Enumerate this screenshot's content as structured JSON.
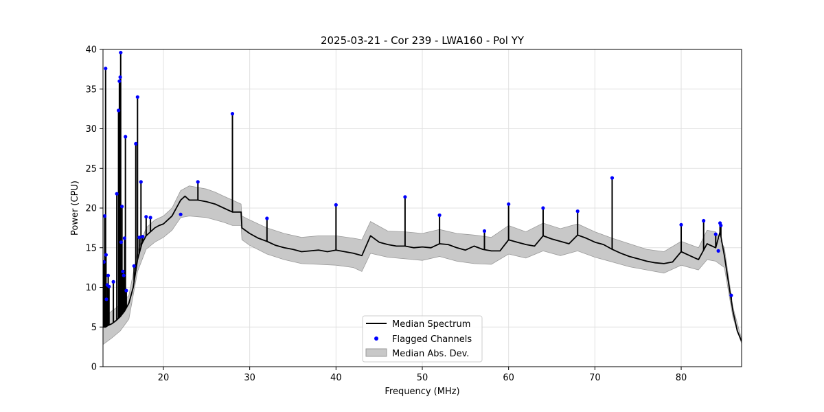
{
  "chart_data": {
    "type": "line",
    "title": "2025-03-21 - Cor 239 - LWA160 - Pol YY",
    "xlabel": "Frequency (MHz)",
    "ylabel": "Power (CPU)",
    "xlim": [
      13,
      87
    ],
    "ylim": [
      0,
      40
    ],
    "xticks": [
      20,
      30,
      40,
      50,
      60,
      70,
      80
    ],
    "xtick_labels": [
      "20",
      "30",
      "40",
      "50",
      "60",
      "70",
      "80"
    ],
    "yticks": [
      0,
      5,
      10,
      15,
      20,
      25,
      30,
      35,
      40
    ],
    "ytick_labels": [
      "0",
      "5",
      "10",
      "15",
      "20",
      "25",
      "30",
      "35",
      "40"
    ],
    "grid": true,
    "legend_position": "bottom-center",
    "colors": {
      "median": "#000000",
      "flagged": "#0000ff",
      "mad_fill": "#c8c8c8",
      "mad_edge": "#9a9a9a",
      "grid": "#e0e0e0"
    },
    "series": [
      {
        "name": "Median Spectrum",
        "kind": "line",
        "x": [
          13.0,
          13.3,
          13.6,
          14.0,
          14.5,
          15.0,
          15.5,
          16.0,
          16.5,
          17.0,
          17.5,
          18.0,
          18.5,
          19.0,
          19.5,
          20.0,
          20.5,
          21.0,
          21.5,
          22.0,
          22.5,
          23.0,
          24.0,
          25.0,
          26.0,
          27.0,
          28.0,
          29.0,
          29.1,
          30.0,
          31.0,
          32.0,
          33.0,
          34.0,
          35.0,
          36.0,
          37.0,
          38.0,
          39.0,
          40.0,
          41.0,
          42.0,
          43.0,
          44.0,
          45.0,
          46.0,
          47.0,
          48.0,
          49.0,
          50.0,
          51.0,
          52.0,
          53.0,
          54.0,
          55.0,
          56.0,
          57.0,
          58.0,
          59.0,
          60.0,
          61.0,
          62.0,
          63.0,
          64.0,
          65.0,
          66.0,
          67.0,
          68.0,
          69.0,
          70.0,
          71.0,
          72.0,
          73.0,
          74.0,
          75.0,
          76.0,
          77.0,
          78.0,
          79.0,
          80.0,
          81.0,
          82.0,
          83.0,
          84.0,
          84.5,
          85.0,
          85.5,
          86.0,
          86.5,
          87.0
        ],
        "values": [
          5.0,
          5.0,
          5.2,
          5.4,
          5.8,
          6.3,
          7.0,
          8.0,
          10.0,
          13.5,
          15.5,
          16.5,
          17.0,
          17.5,
          17.8,
          18.0,
          18.5,
          19.0,
          20.0,
          21.0,
          21.5,
          21.0,
          21.0,
          20.8,
          20.5,
          20.0,
          19.5,
          19.5,
          17.5,
          16.8,
          16.2,
          15.8,
          15.3,
          15.0,
          14.8,
          14.5,
          14.6,
          14.7,
          14.5,
          14.7,
          14.5,
          14.3,
          14.0,
          16.5,
          15.7,
          15.4,
          15.2,
          15.2,
          15.0,
          15.1,
          15.0,
          15.5,
          15.4,
          15.0,
          14.7,
          15.2,
          14.8,
          14.6,
          14.6,
          16.0,
          15.7,
          15.4,
          15.2,
          16.5,
          16.1,
          15.8,
          15.5,
          16.6,
          16.2,
          15.7,
          15.4,
          14.8,
          14.3,
          13.9,
          13.6,
          13.3,
          13.1,
          13.0,
          13.2,
          14.5,
          14.0,
          13.5,
          15.5,
          15.0,
          17.0,
          14.0,
          10.5,
          7.0,
          4.5,
          3.2
        ]
      },
      {
        "name": "Flagged Channels",
        "kind": "scatter",
        "x": [
          13.1,
          13.2,
          13.3,
          13.35,
          13.4,
          13.5,
          13.6,
          13.7,
          14.2,
          14.6,
          14.8,
          14.9,
          15.0,
          15.05,
          15.1,
          15.2,
          15.3,
          15.4,
          15.5,
          15.6,
          15.7,
          16.6,
          16.8,
          17.0,
          17.2,
          17.4,
          17.6,
          18.0,
          18.5,
          22.0,
          24.0,
          28.0,
          32.0,
          40.0,
          48.0,
          52.0,
          57.2,
          60.0,
          64.0,
          68.0,
          72.0,
          80.0,
          82.6,
          84.0,
          84.3,
          84.5,
          84.6,
          85.8
        ],
        "values": [
          13.2,
          19.0,
          37.6,
          14.1,
          8.5,
          10.3,
          11.5,
          10.1,
          10.7,
          21.8,
          32.3,
          36.0,
          36.5,
          39.6,
          15.7,
          20.2,
          12.0,
          11.5,
          16.2,
          29.0,
          9.6,
          12.7,
          28.1,
          34.0,
          16.3,
          23.3,
          16.4,
          18.9,
          18.8,
          19.2,
          23.3,
          31.9,
          18.7,
          20.4,
          21.4,
          19.1,
          17.1,
          20.5,
          20.0,
          19.6,
          23.8,
          17.9,
          18.4,
          16.7,
          14.6,
          18.1,
          17.8,
          9.0
        ]
      },
      {
        "name": "Median Abs. Dev.",
        "kind": "band",
        "x": [
          13.0,
          14.0,
          15.0,
          16.0,
          17.0,
          18.0,
          19.0,
          20.0,
          21.0,
          22.0,
          23.0,
          24.0,
          25.0,
          26.0,
          27.0,
          28.0,
          29.0,
          29.1,
          30.0,
          32.0,
          34.0,
          36.0,
          38.0,
          40.0,
          42.0,
          43.0,
          44.0,
          46.0,
          48.0,
          50.0,
          52.0,
          54.0,
          56.0,
          58.0,
          60.0,
          62.0,
          64.0,
          66.0,
          68.0,
          70.0,
          72.0,
          74.0,
          76.0,
          78.0,
          80.0,
          82.0,
          83.0,
          84.0,
          85.0,
          86.0,
          87.0
        ],
        "upper": [
          6.0,
          7.0,
          7.8,
          9.0,
          14.5,
          17.5,
          18.5,
          19.0,
          20.0,
          22.2,
          22.8,
          22.6,
          22.4,
          22.0,
          21.5,
          21.0,
          20.5,
          19.0,
          18.5,
          17.5,
          16.8,
          16.3,
          16.5,
          16.5,
          16.2,
          16.0,
          18.3,
          17.1,
          17.0,
          16.8,
          17.3,
          16.8,
          16.6,
          16.3,
          17.8,
          17.0,
          18.1,
          17.4,
          18.0,
          17.0,
          16.2,
          15.5,
          14.8,
          14.5,
          15.8,
          15.0,
          17.2,
          17.0,
          15.0,
          7.5,
          3.5
        ],
        "lower": [
          2.8,
          3.6,
          4.5,
          6.0,
          12.0,
          14.8,
          15.7,
          16.3,
          17.2,
          18.8,
          19.0,
          18.9,
          18.8,
          18.5,
          18.2,
          17.8,
          17.8,
          16.0,
          15.3,
          14.2,
          13.5,
          13.0,
          12.9,
          12.8,
          12.5,
          12.0,
          14.3,
          13.8,
          13.6,
          13.4,
          13.9,
          13.3,
          13.0,
          12.9,
          14.2,
          13.7,
          14.6,
          14.0,
          14.6,
          13.8,
          13.2,
          12.6,
          12.2,
          11.8,
          12.8,
          12.2,
          13.5,
          13.3,
          12.5,
          6.2,
          2.9
        ]
      }
    ],
    "legend": [
      "Median Spectrum",
      "Flagged Channels",
      "Median Abs. Dev."
    ]
  }
}
